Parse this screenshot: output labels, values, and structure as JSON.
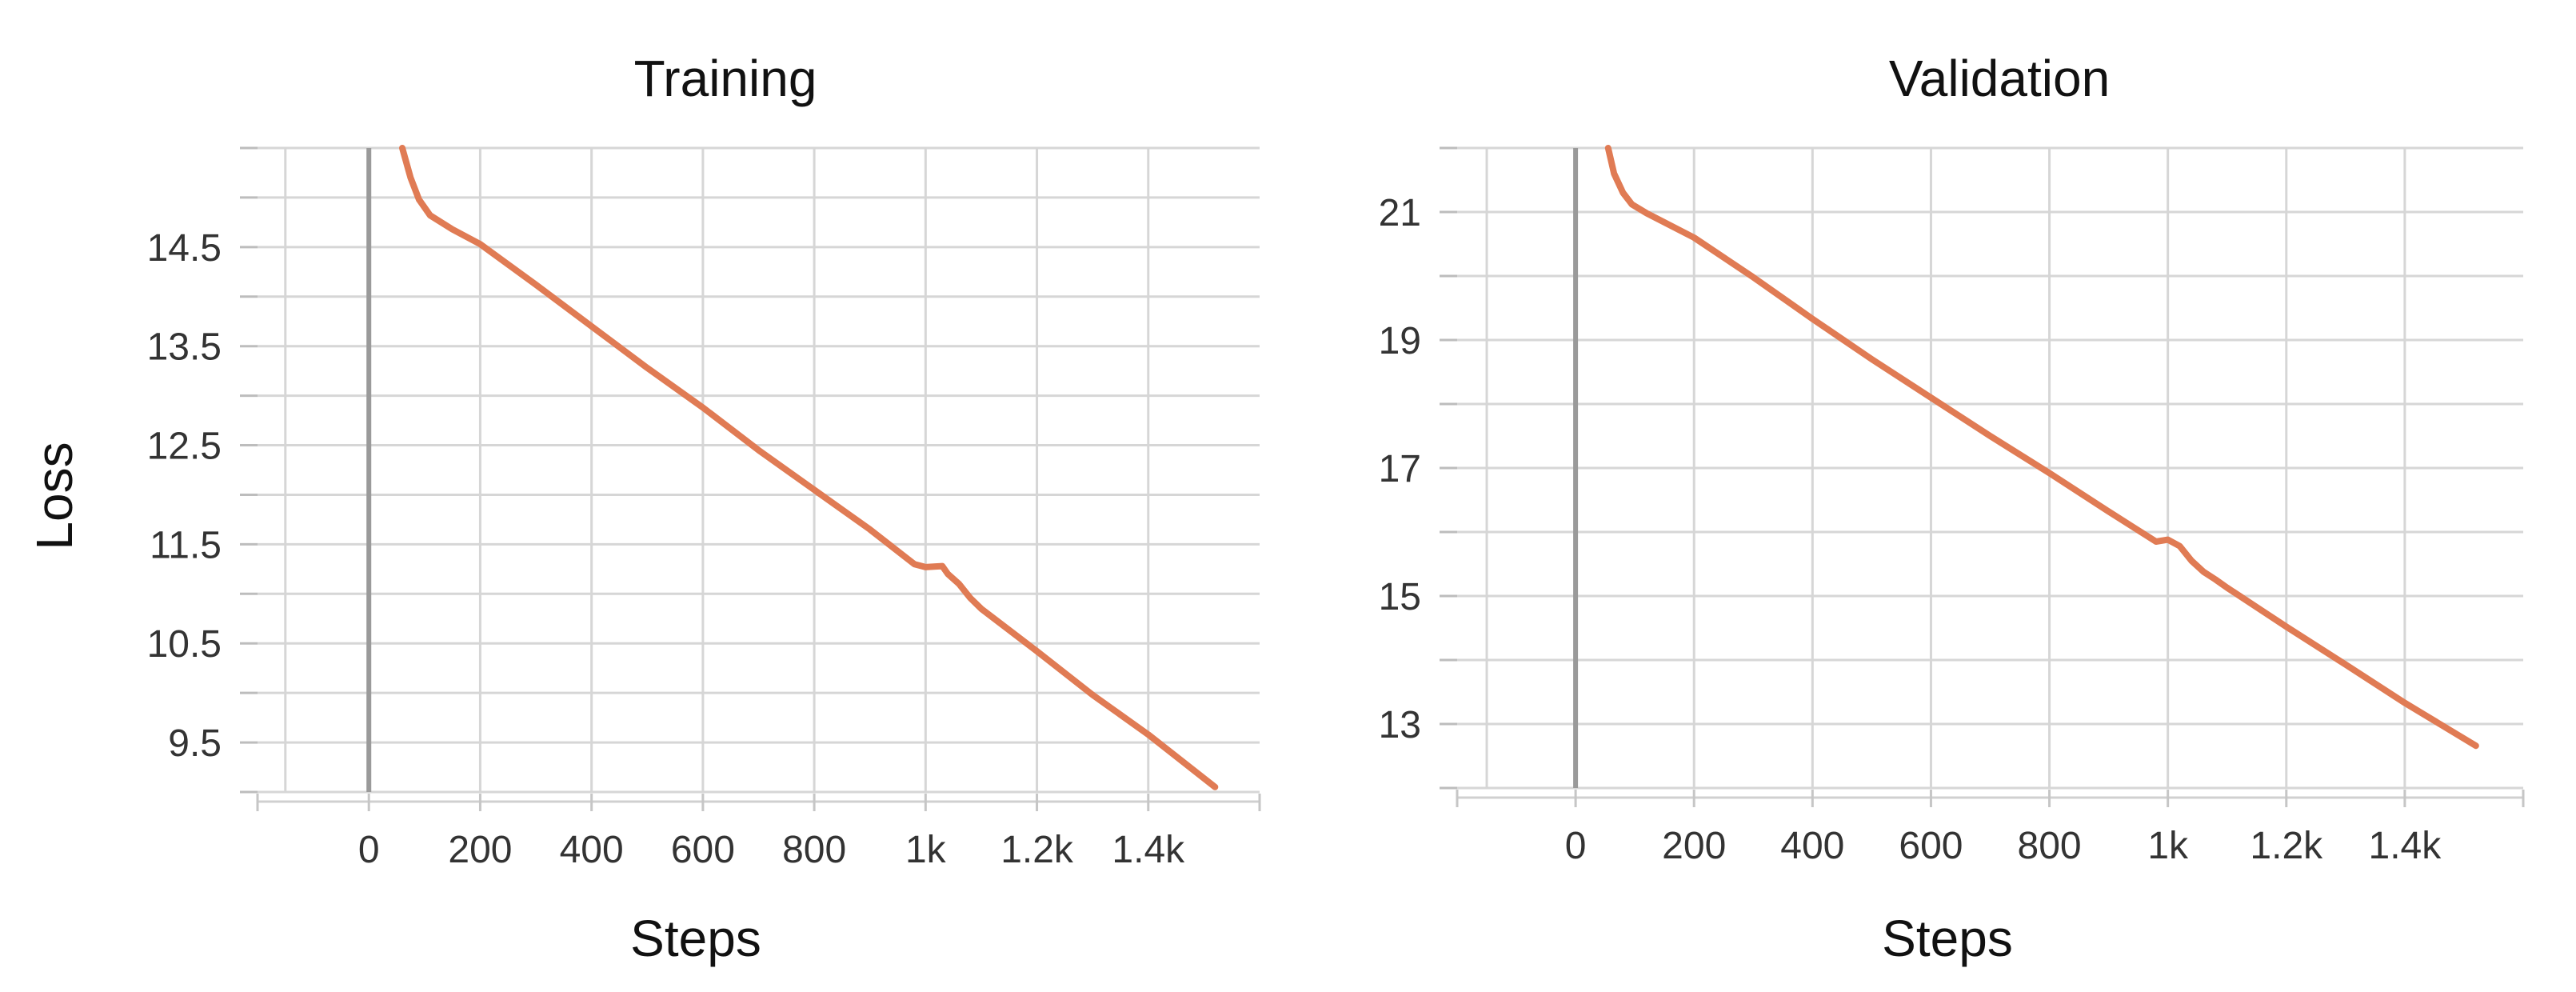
{
  "chart_data": [
    {
      "type": "line",
      "title": "Training",
      "xlabel": "Steps",
      "ylabel": "Loss",
      "xlim": [
        -200,
        1600
      ],
      "ylim": [
        9.0,
        15.5
      ],
      "grid": true,
      "x_ticks": [
        0,
        200,
        400,
        600,
        800,
        1000,
        1200,
        1400
      ],
      "x_tick_labels": [
        "0",
        "200",
        "400",
        "600",
        "800",
        "1k",
        "1.2k",
        "1.4k"
      ],
      "y_ticks": [
        9.5,
        10.5,
        11.5,
        12.5,
        13.5,
        14.5
      ],
      "y_tick_labels": [
        "9.5",
        "10.5",
        "11.5",
        "12.5",
        "13.5",
        "14.5"
      ],
      "color": "#E07B54",
      "series": [
        {
          "x": [
            60,
            75,
            90,
            110,
            150,
            200,
            300,
            400,
            500,
            600,
            700,
            800,
            900,
            980,
            1000,
            1030,
            1040,
            1060,
            1080,
            1100,
            1200,
            1300,
            1400,
            1520
          ],
          "y": [
            15.5,
            15.2,
            14.98,
            14.82,
            14.68,
            14.53,
            14.12,
            13.7,
            13.28,
            12.88,
            12.45,
            12.05,
            11.65,
            11.3,
            11.27,
            11.28,
            11.2,
            11.1,
            10.96,
            10.85,
            10.42,
            9.98,
            9.58,
            9.05
          ]
        }
      ]
    },
    {
      "type": "line",
      "title": "Validation",
      "xlabel": "Steps",
      "ylabel": "",
      "xlim": [
        -200,
        1600
      ],
      "ylim": [
        12.0,
        22.0
      ],
      "grid": true,
      "x_ticks": [
        0,
        200,
        400,
        600,
        800,
        1000,
        1200,
        1400
      ],
      "x_tick_labels": [
        "0",
        "200",
        "400",
        "600",
        "800",
        "1k",
        "1.2k",
        "1.4k"
      ],
      "y_ticks": [
        13,
        15,
        17,
        19,
        21
      ],
      "y_tick_labels": [
        "13",
        "15",
        "17",
        "19",
        "21"
      ],
      "color": "#E07B54",
      "series": [
        {
          "x": [
            55,
            65,
            80,
            95,
            120,
            200,
            300,
            400,
            500,
            600,
            700,
            800,
            900,
            980,
            1000,
            1020,
            1040,
            1060,
            1080,
            1100,
            1200,
            1300,
            1400,
            1520
          ],
          "y": [
            22.0,
            21.6,
            21.3,
            21.12,
            20.98,
            20.6,
            19.98,
            19.33,
            18.7,
            18.1,
            17.5,
            16.92,
            16.32,
            15.85,
            15.88,
            15.78,
            15.55,
            15.38,
            15.26,
            15.13,
            14.52,
            13.93,
            13.33,
            12.66
          ]
        }
      ]
    }
  ]
}
